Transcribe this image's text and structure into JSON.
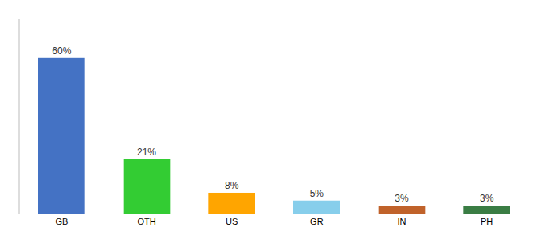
{
  "chart_data": {
    "type": "bar",
    "categories": [
      "GB",
      "OTH",
      "US",
      "GR",
      "IN",
      "PH"
    ],
    "values": [
      60,
      21,
      8,
      5,
      3,
      3
    ],
    "value_labels": [
      "60%",
      "21%",
      "8%",
      "5%",
      "3%",
      "3%"
    ],
    "data_labels": true,
    "colors": [
      "#4472C4",
      "#33CC33",
      "#FFA500",
      "#87CEEB",
      "#C0622A",
      "#3A7D44"
    ],
    "ylim": [
      0,
      75
    ],
    "tick_labels": "x"
  }
}
